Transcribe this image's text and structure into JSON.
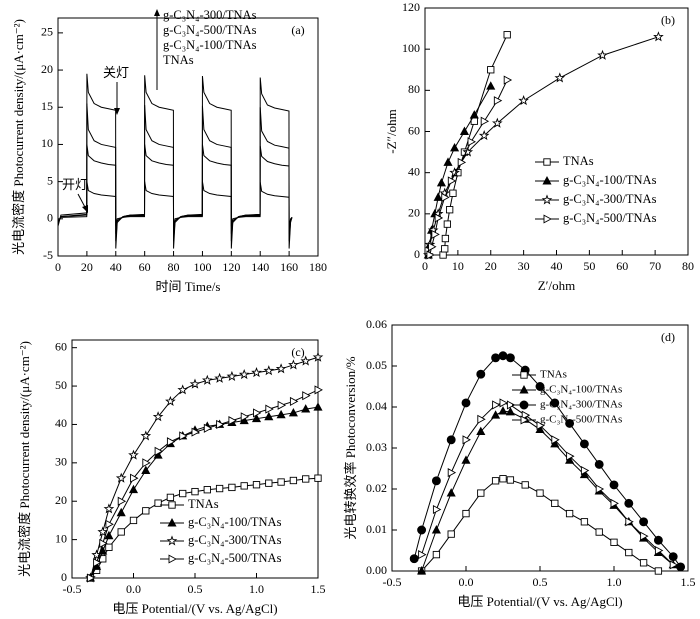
{
  "chart_data": [
    {
      "type": "line",
      "label": "(a)",
      "x_label": "时间 Time/s",
      "y_label": "光电流密度 Photocurrent density/(μA·cm⁻²)",
      "annotations": [
        "关灯",
        "开灯"
      ],
      "xlim": [
        0,
        180
      ],
      "ylim": [
        -5,
        27
      ],
      "xticks": [
        0,
        20,
        40,
        60,
        80,
        100,
        120,
        140,
        160,
        180
      ],
      "yticks": [
        -5,
        0,
        5,
        10,
        15,
        20,
        25
      ],
      "x": [
        0,
        2,
        19.9,
        20,
        21,
        25,
        30,
        35,
        39.9,
        40,
        41,
        45,
        50,
        59.9,
        60,
        61,
        65,
        70,
        75,
        79.9,
        80,
        81,
        85,
        90,
        99.9,
        100,
        101,
        105,
        110,
        115,
        119.9,
        120,
        121,
        125,
        130,
        139.9,
        140,
        141,
        145,
        150,
        155,
        159.9,
        160,
        161,
        162
      ],
      "series": [
        {
          "name": "g-C₃N₄-300/TNAs",
          "color": "#000000",
          "values": [
            -1,
            0.5,
            0.8,
            19.5,
            17,
            15.5,
            15,
            14.8,
            14.6,
            -4,
            -0.5,
            0.3,
            0.5,
            0.6,
            19.3,
            17,
            15.5,
            15,
            14.8,
            14.6,
            -4,
            -0.5,
            0.3,
            0.5,
            0.6,
            19.2,
            17,
            15.5,
            15,
            14.8,
            14.6,
            -4,
            -0.5,
            0.3,
            0.5,
            0.6,
            19,
            16.8,
            15.3,
            14.9,
            14.7,
            14.5,
            -4,
            -0.5,
            0.2
          ]
        },
        {
          "name": "g-C₃N₄-500/TNAs",
          "color": "#000000",
          "values": [
            -0.5,
            0.3,
            0.6,
            15.5,
            12,
            10.5,
            10,
            9.8,
            9.6,
            -3,
            -0.3,
            0.3,
            0.5,
            0.5,
            15.3,
            12,
            10.5,
            10,
            9.8,
            9.6,
            -3,
            -0.3,
            0.3,
            0.5,
            0.5,
            15.2,
            12,
            10.5,
            10,
            9.8,
            9.6,
            -3,
            -0.3,
            0.3,
            0.5,
            0.5,
            15,
            11.8,
            10.4,
            9.9,
            9.7,
            9.5,
            -3,
            -0.3,
            0.2
          ]
        },
        {
          "name": "g-C₃N₄-100/TNAs",
          "color": "#000000",
          "values": [
            -0.5,
            0.3,
            0.5,
            10,
            8.5,
            7.8,
            7.5,
            7.3,
            7.2,
            -2,
            -0.2,
            0.2,
            0.4,
            0.4,
            10,
            8.5,
            7.8,
            7.5,
            7.3,
            7.2,
            -2,
            -0.2,
            0.2,
            0.4,
            0.4,
            10,
            8.5,
            7.8,
            7.5,
            7.3,
            7.2,
            -2,
            -0.2,
            0.2,
            0.4,
            0.4,
            9.8,
            8.4,
            7.7,
            7.4,
            7.2,
            7.1,
            -2,
            -0.2,
            0.2
          ]
        },
        {
          "name": "TNAs",
          "color": "#000000",
          "values": [
            -0.3,
            0.2,
            0.3,
            5,
            3.8,
            3.4,
            3.2,
            3.1,
            3,
            -1,
            0,
            0.2,
            0.3,
            0.3,
            5,
            3.8,
            3.4,
            3.2,
            3.1,
            3,
            -1,
            0,
            0.2,
            0.3,
            0.3,
            5,
            3.8,
            3.4,
            3.2,
            3.1,
            3,
            -1,
            0,
            0.2,
            0.3,
            0.3,
            4.9,
            3.7,
            3.3,
            3.1,
            3,
            2.9,
            -1,
            0,
            0.2
          ]
        }
      ]
    },
    {
      "type": "line",
      "label": "(b)",
      "x_label": "Z′/ohm",
      "y_label": "-Z″/ohm",
      "xlim": [
        0,
        80
      ],
      "ylim": [
        0,
        120
      ],
      "xticks": [
        0,
        10,
        20,
        30,
        40,
        50,
        60,
        70,
        80
      ],
      "yticks": [
        0,
        20,
        40,
        60,
        80,
        100,
        120
      ],
      "series": [
        {
          "name": "TNAs",
          "color": "#000000",
          "marker": "open-square",
          "x": [
            5.5,
            6,
            6.2,
            6.8,
            7.5,
            8.5,
            10,
            12,
            15,
            20,
            25
          ],
          "values": [
            0,
            3,
            8,
            15,
            22,
            30,
            40,
            50,
            65,
            90,
            107
          ]
        },
        {
          "name": "g-C₃N₄-100/TNAs",
          "color": "#000000",
          "marker": "filled-triangle",
          "x": [
            1,
            1.5,
            2,
            3,
            4,
            5,
            7,
            9,
            12,
            15,
            20
          ],
          "values": [
            0,
            5,
            12,
            20,
            28,
            35,
            45,
            52,
            60,
            68,
            82
          ]
        },
        {
          "name": "g-C₃N₄-300/TNAs",
          "color": "#000000",
          "marker": "open-star",
          "x": [
            1,
            1.5,
            2.5,
            4,
            6,
            9,
            13,
            18,
            22,
            30,
            41,
            54,
            71
          ],
          "values": [
            0,
            5,
            12,
            20,
            30,
            40,
            50,
            58,
            64,
            75,
            86,
            97,
            106
          ]
        },
        {
          "name": "g-C₃N₄-500/TNAs",
          "color": "#000000",
          "marker": "open-right",
          "x": [
            1.5,
            2,
            3,
            4,
            6,
            8,
            11,
            14,
            18,
            22,
            25
          ],
          "values": [
            0,
            4,
            10,
            18,
            28,
            36,
            45,
            55,
            65,
            75,
            85
          ]
        }
      ]
    },
    {
      "type": "line",
      "label": "(c)",
      "x_label": "电压 Potential/(V vs. Ag/AgCl)",
      "y_label": "光电流密度 Photocurrent density/(μA·cm⁻²)",
      "xlim": [
        -0.5,
        1.5
      ],
      "ylim": [
        0,
        62
      ],
      "xticks": [
        -0.5,
        {
          "value": 0,
          "label": "0.0"
        },
        0.5,
        {
          "value": 1,
          "label": "1.0"
        },
        1.5
      ],
      "yticks": [
        0,
        10,
        20,
        30,
        40,
        50,
        60
      ],
      "x": [
        -0.35,
        -0.3,
        -0.25,
        -0.2,
        -0.1,
        0,
        0.1,
        0.2,
        0.3,
        0.4,
        0.5,
        0.6,
        0.7,
        0.8,
        0.9,
        1.0,
        1.1,
        1.2,
        1.3,
        1.4,
        1.5
      ],
      "series": [
        {
          "name": "TNAs",
          "color": "#000000",
          "marker": "open-square",
          "values": [
            0,
            2,
            5,
            8,
            12,
            15,
            17.5,
            19.5,
            21,
            22,
            22.5,
            23,
            23.3,
            23.6,
            24,
            24.3,
            24.7,
            25,
            25.4,
            25.8,
            26
          ]
        },
        {
          "name": "g-C₃N₄-100/TNAs",
          "color": "#000000",
          "marker": "filled-triangle",
          "values": [
            0,
            3,
            7,
            11,
            17,
            23,
            28,
            32,
            35,
            37,
            38.5,
            39.5,
            40,
            40.5,
            41,
            41.5,
            42,
            42.5,
            43,
            44,
            44.5
          ]
        },
        {
          "name": "g-C₃N₄-300/TNAs",
          "color": "#000000",
          "marker": "open-star",
          "values": [
            0,
            6,
            12,
            18,
            26,
            32,
            37,
            42,
            46,
            49,
            50.5,
            51.5,
            52,
            52.5,
            53,
            53.5,
            54,
            54.5,
            55.5,
            56.5,
            57.5
          ]
        },
        {
          "name": "g-C₃N₄-500/TNAs",
          "color": "#000000",
          "marker": "open-right",
          "values": [
            0,
            4,
            9,
            14,
            20,
            26,
            30,
            33,
            35.5,
            37,
            38,
            39,
            40,
            41,
            42,
            43,
            44,
            45,
            46,
            47.5,
            49
          ]
        }
      ]
    },
    {
      "type": "line",
      "label": "(d)",
      "x_label": "电压 Potential/(V vs. Ag/AgCl)",
      "y_label": "光电转换效率 Photoconversion/%",
      "xlim": [
        -0.5,
        1.5
      ],
      "ylim": [
        0,
        0.06
      ],
      "xticks": [
        -0.5,
        {
          "value": 0,
          "label": "0.0"
        },
        0.5,
        {
          "value": 1,
          "label": "1.0"
        },
        1.5
      ],
      "yticks": [
        {
          "value": 0,
          "label": "0.00"
        },
        0.01,
        0.02,
        0.03,
        0.04,
        0.05,
        0.06
      ],
      "x": [
        -0.35,
        -0.3,
        -0.2,
        -0.1,
        0,
        0.1,
        0.2,
        0.25,
        0.3,
        0.4,
        0.5,
        0.6,
        0.7,
        0.8,
        0.9,
        1.0,
        1.1,
        1.2,
        1.3,
        1.4,
        1.45
      ],
      "series": [
        {
          "name": "TNAs",
          "color": "#000000",
          "marker": "open-square",
          "values": [
            null,
            0,
            0.004,
            0.009,
            0.014,
            0.019,
            0.022,
            0.0225,
            0.0222,
            0.021,
            0.019,
            0.0165,
            0.014,
            0.012,
            0.0095,
            0.007,
            0.0045,
            0.002,
            0,
            null,
            null
          ]
        },
        {
          "name": "g-C₃N₄-100/TNAs",
          "color": "#000000",
          "marker": "filled-triangle",
          "values": [
            null,
            0,
            0.01,
            0.019,
            0.027,
            0.034,
            0.038,
            0.039,
            0.0388,
            0.037,
            0.0345,
            0.031,
            0.027,
            0.0235,
            0.0195,
            0.016,
            0.012,
            0.008,
            0.0045,
            0.0015,
            null
          ]
        },
        {
          "name": "g-C₃N₄-300/TNAs",
          "color": "#000000",
          "marker": "filled-circle",
          "values": [
            0.003,
            0.01,
            0.022,
            0.032,
            0.041,
            0.048,
            0.052,
            0.0525,
            0.052,
            0.049,
            0.045,
            0.041,
            0.036,
            0.031,
            0.026,
            0.021,
            0.0165,
            0.012,
            0.0075,
            0.0035,
            0.001
          ]
        },
        {
          "name": "g-C₃N₄-500/TNAs",
          "color": "#000000",
          "marker": "open-right",
          "values": [
            null,
            0.004,
            0.015,
            0.024,
            0.032,
            0.037,
            0.0405,
            0.041,
            0.0405,
            0.038,
            0.0355,
            0.032,
            0.028,
            0.0245,
            0.02,
            0.0165,
            0.012,
            0.0085,
            0.005,
            0.0015,
            null
          ]
        }
      ]
    }
  ]
}
